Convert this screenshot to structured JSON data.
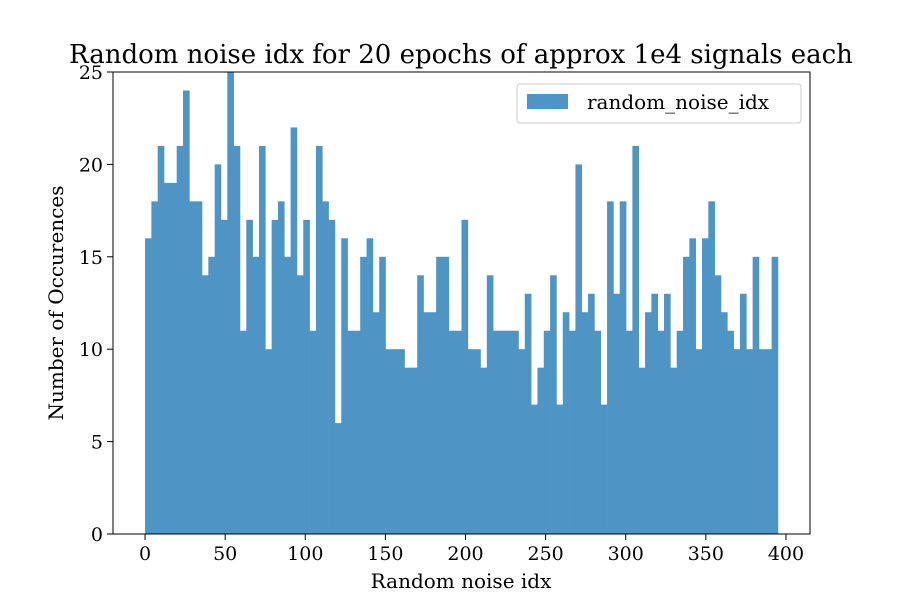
{
  "chart_data": {
    "type": "bar",
    "title": "Random noise idx for 20 epochs of approx 1e4 signals each",
    "xlabel": "Random noise idx",
    "ylabel": "Number of Occurences",
    "xlim": [
      -20,
      415
    ],
    "ylim": [
      0,
      25
    ],
    "x_ticks": [
      0,
      50,
      100,
      150,
      200,
      250,
      300,
      350,
      400
    ],
    "y_ticks": [
      0,
      5,
      10,
      15,
      20,
      25
    ],
    "grid": false,
    "legend_position": "top-right",
    "bar_color": "#4e94c4",
    "bin_start": 0,
    "bin_width": 3.95,
    "series": [
      {
        "name": "random_noise_idx",
        "values": [
          16,
          18,
          21,
          19,
          19,
          21,
          24,
          18,
          18,
          14,
          15,
          20,
          17,
          25,
          21,
          11,
          17,
          15,
          21,
          10,
          17,
          18,
          15,
          22,
          14,
          17,
          11,
          21,
          18,
          17,
          6,
          16,
          11,
          11,
          15,
          16,
          12,
          15,
          10,
          10,
          10,
          9,
          9,
          14,
          12,
          12,
          15,
          15,
          11,
          11,
          17,
          10,
          10,
          9,
          14,
          11,
          11,
          11,
          11,
          10,
          13,
          7,
          9,
          11,
          14,
          7,
          12,
          11,
          20,
          12,
          13,
          11,
          7,
          18,
          13,
          18,
          11,
          21,
          9,
          12,
          13,
          11,
          13,
          9,
          11,
          15,
          16,
          10,
          16,
          18,
          14,
          12,
          11,
          10,
          13,
          10,
          15,
          10,
          10,
          15
        ]
      }
    ]
  }
}
